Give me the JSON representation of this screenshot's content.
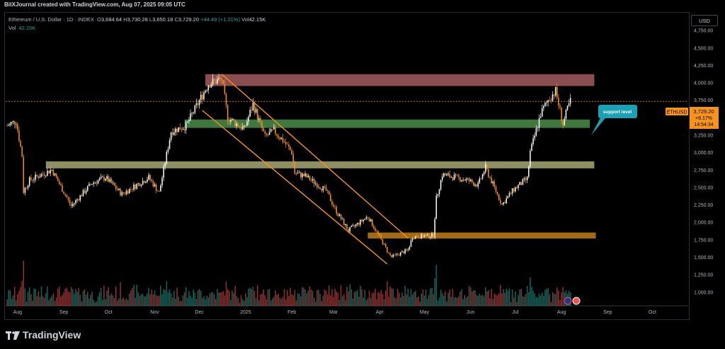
{
  "header": {
    "credit": "BitXJournal created with TradingView.com, Aug 07, 2025 09:05 UTC"
  },
  "legend": {
    "symbol": "Ethereum / U.S. Dollar · 1D · INDEX",
    "open_label": "O",
    "open": "3,684.64",
    "high_label": "H",
    "high": "3,730.28",
    "low_label": "L",
    "low": "3,650.18",
    "close_label": "C",
    "close": "3,729.20",
    "change": "+44.49 (+1.21%)",
    "vol_label": "Vol",
    "vol": "42.15K"
  },
  "volume_line": {
    "label": "Vol",
    "value": "42.15K"
  },
  "currency_button": "USD",
  "price_tag": {
    "ticker": "ETHUSD",
    "price": "3,729.20",
    "pct": "+8.17%",
    "countdown": "14:54:34"
  },
  "callout": {
    "text": "support level"
  },
  "footer": {
    "brand": "TradingView"
  },
  "colors": {
    "up": "#ffffff",
    "down": "#f7931a",
    "volume_up": "#26a69a",
    "volume_down": "#ef5350"
  },
  "chart_data": {
    "type": "candlestick",
    "symbol": "ETHUSD",
    "ylim": [
      800,
      5000
    ],
    "y_ticks": [
      1000,
      1250,
      1500,
      1750,
      2000,
      2250,
      2500,
      2750,
      3000,
      3250,
      3500,
      3750,
      4000,
      4250,
      4500,
      4750
    ],
    "y_tick_labels": [
      "1,000.00",
      "1,250.00",
      "1,500.00",
      "1,750.00",
      "2,000.00",
      "2,250.00",
      "2,500.00",
      "2,750.00",
      "3,000.00",
      "3,250.00",
      "3,500.00",
      "3,750.00",
      "4,000.00",
      "4,250.00",
      "4,500.00",
      "4,750.00"
    ],
    "x_ticks": [
      "Aug",
      "Sep",
      "Oct",
      "Nov",
      "Dec",
      "2025",
      "Feb",
      "Mar",
      "Apr",
      "May",
      "Jun",
      "Jul",
      "Aug",
      "Sep",
      "Oct"
    ],
    "x_tick_dates": [
      "2024-08-01",
      "2024-09-01",
      "2024-10-01",
      "2024-11-01",
      "2024-12-01",
      "2025-01-01",
      "2025-02-01",
      "2025-03-01",
      "2025-04-01",
      "2025-05-01",
      "2025-06-01",
      "2025-07-01",
      "2025-08-01",
      "2025-09-01",
      "2025-10-01"
    ],
    "x_range": [
      "2024-07-24",
      "2025-10-25"
    ],
    "price_anchors": [
      [
        "2024-07-25",
        3380
      ],
      [
        "2024-07-31",
        3450
      ],
      [
        "2024-08-04",
        2950
      ],
      [
        "2024-08-05",
        2440
      ],
      [
        "2024-08-09",
        2600
      ],
      [
        "2024-08-24",
        2750
      ],
      [
        "2024-09-06",
        2230
      ],
      [
        "2024-09-20",
        2560
      ],
      [
        "2024-09-29",
        2640
      ],
      [
        "2024-10-10",
        2400
      ],
      [
        "2024-10-28",
        2640
      ],
      [
        "2024-11-04",
        2420
      ],
      [
        "2024-11-12",
        3300
      ],
      [
        "2024-11-22",
        3380
      ],
      [
        "2024-11-30",
        3700
      ],
      [
        "2024-12-07",
        3980
      ],
      [
        "2024-12-16",
        4050
      ],
      [
        "2024-12-20",
        3500
      ],
      [
        "2024-12-31",
        3330
      ],
      [
        "2025-01-06",
        3690
      ],
      [
        "2025-01-14",
        3220
      ],
      [
        "2025-01-20",
        3310
      ],
      [
        "2025-01-27",
        3150
      ],
      [
        "2025-02-01",
        3000
      ],
      [
        "2025-02-03",
        2700
      ],
      [
        "2025-02-10",
        2660
      ],
      [
        "2025-02-24",
        2450
      ],
      [
        "2025-03-03",
        2150
      ],
      [
        "2025-03-11",
        1880
      ],
      [
        "2025-03-24",
        2080
      ],
      [
        "2025-03-31",
        1820
      ],
      [
        "2025-04-07",
        1550
      ],
      [
        "2025-04-09",
        1500
      ],
      [
        "2025-04-20",
        1600
      ],
      [
        "2025-04-23",
        1790
      ],
      [
        "2025-05-07",
        1810
      ],
      [
        "2025-05-09",
        2340
      ],
      [
        "2025-05-13",
        2680
      ],
      [
        "2025-05-30",
        2600
      ],
      [
        "2025-06-06",
        2530
      ],
      [
        "2025-06-11",
        2780
      ],
      [
        "2025-06-22",
        2250
      ],
      [
        "2025-06-30",
        2470
      ],
      [
        "2025-07-09",
        2620
      ],
      [
        "2025-07-11",
        3000
      ],
      [
        "2025-07-18",
        3550
      ],
      [
        "2025-07-23",
        3750
      ],
      [
        "2025-07-28",
        3880
      ],
      [
        "2025-08-01",
        3500
      ],
      [
        "2025-08-02",
        3400
      ],
      [
        "2025-08-05",
        3620
      ],
      [
        "2025-08-07",
        3729
      ]
    ],
    "volume_note": "histogram bars per day, green on up days and red on down days, heights not labeled",
    "zones": [
      {
        "color": "#a35c5e",
        "from": "2024-12-05",
        "to": "2025-08-23",
        "low": 3950,
        "high": 4120
      },
      {
        "color": "#4a8c4a",
        "from": "2024-11-21",
        "to": "2025-08-20",
        "low": 3350,
        "high": 3470
      },
      {
        "color": "#a8a878",
        "from": "2024-08-20",
        "to": "2025-08-23",
        "low": 2770,
        "high": 2870
      },
      {
        "color": "#c07e1a",
        "from": "2025-03-24",
        "to": "2025-08-24",
        "low": 1765,
        "high": 1850
      }
    ],
    "channel": {
      "color": "#f7931a",
      "upper": [
        [
          "2024-12-16",
          4120
        ],
        [
          "2025-04-20",
          1770
        ]
      ],
      "lower": [
        [
          "2024-12-03",
          3600
        ],
        [
          "2025-04-06",
          1400
        ]
      ]
    },
    "last_price": 3729.2,
    "grid": false,
    "legend_position": "top-left"
  }
}
